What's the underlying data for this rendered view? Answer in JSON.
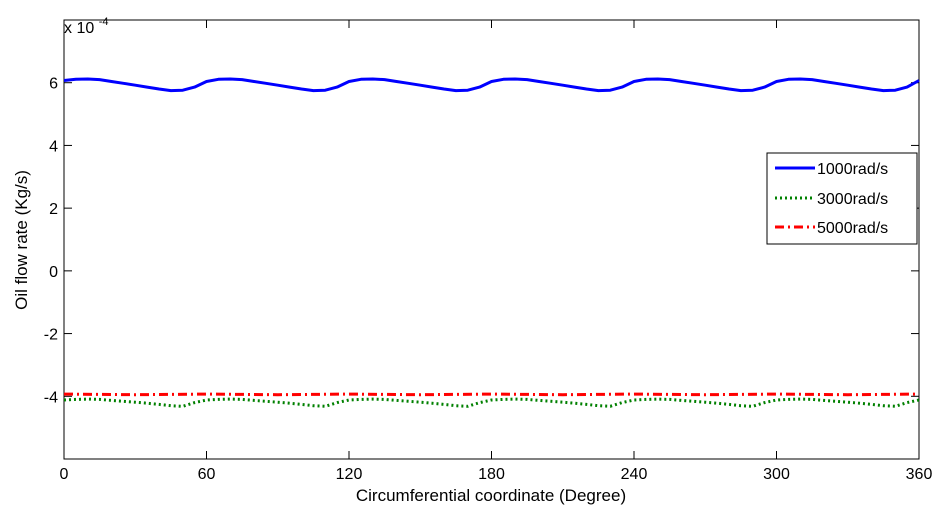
{
  "chart_data": {
    "type": "line",
    "xlabel": "Circumferential coordinate (Degree)",
    "ylabel": "Oil flow rate (Kg/s)",
    "exponent_base": "x 10",
    "exponent_power": "-4",
    "xlim": [
      0,
      360
    ],
    "ylim": [
      -6,
      8
    ],
    "x_ticks": [
      0,
      60,
      120,
      180,
      240,
      300,
      360
    ],
    "x_tick_labels": [
      "0",
      "60",
      "120",
      "180",
      "240",
      "300",
      "360"
    ],
    "y_ticks": [
      -4,
      -2,
      0,
      2,
      4,
      6
    ],
    "y_tick_labels": [
      "-4",
      "-2",
      "0",
      "2",
      "4",
      "6"
    ],
    "grid": false,
    "legend_position": "right",
    "series": [
      {
        "name": "1000rad/s",
        "color": "#0000ff",
        "style": "solid",
        "x": [
          0,
          5,
          10,
          15,
          20,
          25,
          30,
          35,
          40,
          45,
          50,
          55,
          60,
          65,
          70,
          75,
          80,
          85,
          90,
          95,
          100,
          105,
          110,
          115,
          120,
          125,
          130,
          135,
          140,
          145,
          150,
          155,
          160,
          165,
          170,
          175,
          180,
          185,
          190,
          195,
          200,
          205,
          210,
          215,
          220,
          225,
          230,
          235,
          240,
          245,
          250,
          255,
          260,
          265,
          270,
          275,
          280,
          285,
          290,
          295,
          300,
          305,
          310,
          315,
          320,
          325,
          330,
          335,
          340,
          345,
          350,
          355,
          360
        ],
        "y": [
          6.07,
          6.11,
          6.12,
          6.1,
          6.04,
          5.98,
          5.92,
          5.86,
          5.8,
          5.75,
          5.76,
          5.86,
          6.04,
          6.11,
          6.12,
          6.1,
          6.04,
          5.98,
          5.92,
          5.86,
          5.8,
          5.75,
          5.76,
          5.86,
          6.04,
          6.11,
          6.12,
          6.1,
          6.04,
          5.98,
          5.92,
          5.86,
          5.8,
          5.75,
          5.76,
          5.86,
          6.04,
          6.11,
          6.12,
          6.1,
          6.04,
          5.98,
          5.92,
          5.86,
          5.8,
          5.75,
          5.76,
          5.86,
          6.04,
          6.11,
          6.12,
          6.1,
          6.04,
          5.98,
          5.92,
          5.86,
          5.8,
          5.75,
          5.76,
          5.86,
          6.04,
          6.11,
          6.12,
          6.1,
          6.04,
          5.98,
          5.92,
          5.86,
          5.8,
          5.75,
          5.76,
          5.86,
          6.07
        ]
      },
      {
        "name": "3000rad/s",
        "color": "#008000",
        "style": "dotted",
        "x": [
          0,
          5,
          10,
          15,
          20,
          25,
          30,
          35,
          40,
          45,
          50,
          55,
          60,
          65,
          70,
          75,
          80,
          85,
          90,
          95,
          100,
          105,
          110,
          115,
          120,
          125,
          130,
          135,
          140,
          145,
          150,
          155,
          160,
          165,
          170,
          175,
          180,
          185,
          190,
          195,
          200,
          205,
          210,
          215,
          220,
          225,
          230,
          235,
          240,
          245,
          250,
          255,
          260,
          265,
          270,
          275,
          280,
          285,
          290,
          295,
          300,
          305,
          310,
          315,
          320,
          325,
          330,
          335,
          340,
          345,
          350,
          355,
          360
        ],
        "y": [
          -4.12,
          -4.1,
          -4.09,
          -4.1,
          -4.13,
          -4.16,
          -4.19,
          -4.22,
          -4.26,
          -4.3,
          -4.32,
          -4.2,
          -4.12,
          -4.1,
          -4.09,
          -4.1,
          -4.13,
          -4.16,
          -4.19,
          -4.22,
          -4.26,
          -4.3,
          -4.32,
          -4.2,
          -4.12,
          -4.1,
          -4.09,
          -4.1,
          -4.13,
          -4.16,
          -4.19,
          -4.22,
          -4.26,
          -4.3,
          -4.32,
          -4.2,
          -4.12,
          -4.1,
          -4.09,
          -4.1,
          -4.13,
          -4.16,
          -4.19,
          -4.22,
          -4.26,
          -4.3,
          -4.32,
          -4.2,
          -4.12,
          -4.1,
          -4.09,
          -4.1,
          -4.13,
          -4.16,
          -4.19,
          -4.22,
          -4.26,
          -4.3,
          -4.32,
          -4.2,
          -4.12,
          -4.1,
          -4.09,
          -4.1,
          -4.13,
          -4.16,
          -4.19,
          -4.22,
          -4.26,
          -4.3,
          -4.32,
          -4.2,
          -4.12
        ]
      },
      {
        "name": "5000rad/s",
        "color": "#ff0000",
        "style": "dashdot",
        "x": [
          0,
          30,
          60,
          90,
          120,
          150,
          180,
          210,
          240,
          270,
          300,
          330,
          360
        ],
        "y": [
          -3.93,
          -3.95,
          -3.93,
          -3.95,
          -3.93,
          -3.95,
          -3.93,
          -3.95,
          -3.93,
          -3.95,
          -3.93,
          -3.95,
          -3.93
        ]
      }
    ]
  }
}
